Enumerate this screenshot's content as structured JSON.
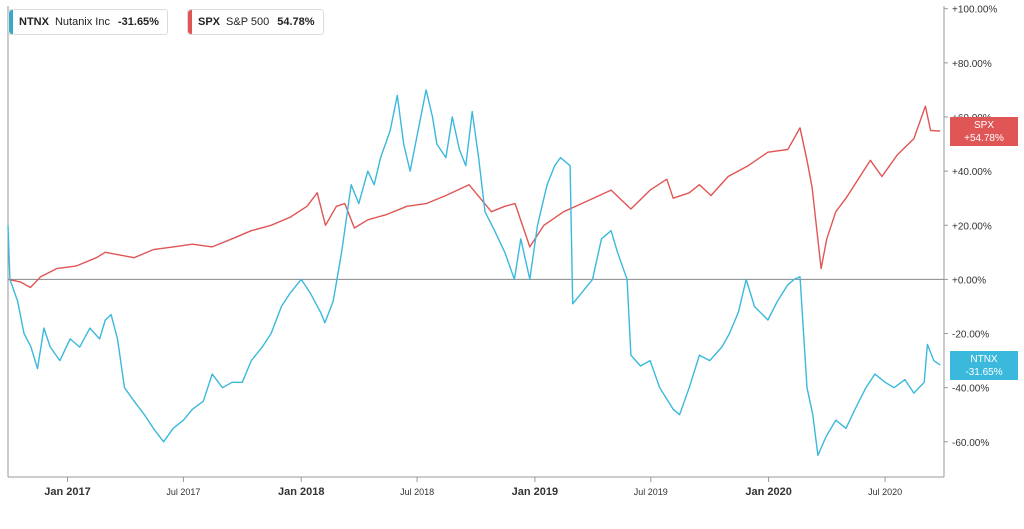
{
  "legend": [
    {
      "symbol": "NTNX",
      "name": "Nutanix Inc",
      "change": "-31.65%",
      "color": "#3aa8c9"
    },
    {
      "symbol": "SPX",
      "name": "S&P 500",
      "change": "54.78%",
      "color": "#e05555"
    }
  ],
  "tags": [
    {
      "symbol": "SPX",
      "value": "+54.78%",
      "color": "#e05555"
    },
    {
      "symbol": "NTNX",
      "value": "-31.65%",
      "color": "#3ab9dc"
    }
  ],
  "chart_data": {
    "type": "line",
    "y_unit": "% change",
    "ylim": [
      -73,
      101
    ],
    "xlim": [
      "2016-09-30",
      "2020-10-01"
    ],
    "y_ticks": [
      {
        "value": 100,
        "label": "+100.00%"
      },
      {
        "value": 80,
        "label": "+80.00%"
      },
      {
        "value": 60,
        "label": "+60.00%"
      },
      {
        "value": 40,
        "label": "+40.00%"
      },
      {
        "value": 20,
        "label": "+20.00%"
      },
      {
        "value": 0,
        "label": "+0.00%"
      },
      {
        "value": -20,
        "label": "-20.00%"
      },
      {
        "value": -40,
        "label": "-40.00%"
      },
      {
        "value": -60,
        "label": "-60.00%"
      }
    ],
    "x_ticks": [
      {
        "date": "2017-01-01",
        "label": "Jan 2017",
        "major": true
      },
      {
        "date": "2017-07-01",
        "label": "Jul 2017",
        "major": false
      },
      {
        "date": "2018-01-01",
        "label": "Jan 2018",
        "major": true
      },
      {
        "date": "2018-07-01",
        "label": "Jul 2018",
        "major": false
      },
      {
        "date": "2019-01-01",
        "label": "Jan 2019",
        "major": true
      },
      {
        "date": "2019-07-01",
        "label": "Jul 2019",
        "major": false
      },
      {
        "date": "2020-01-01",
        "label": "Jan 2020",
        "major": true
      },
      {
        "date": "2020-07-01",
        "label": "Jul 2020",
        "major": false
      }
    ],
    "series": [
      {
        "name": "SPX",
        "color": "#e05555",
        "points": [
          [
            "2016-10-01",
            0
          ],
          [
            "2016-10-20",
            -1
          ],
          [
            "2016-11-04",
            -3
          ],
          [
            "2016-11-20",
            1
          ],
          [
            "2016-12-15",
            4
          ],
          [
            "2017-01-15",
            5
          ],
          [
            "2017-02-15",
            8
          ],
          [
            "2017-03-01",
            10
          ],
          [
            "2017-04-15",
            8
          ],
          [
            "2017-05-15",
            11
          ],
          [
            "2017-06-15",
            12
          ],
          [
            "2017-07-15",
            13
          ],
          [
            "2017-08-15",
            12
          ],
          [
            "2017-09-15",
            15
          ],
          [
            "2017-10-15",
            18
          ],
          [
            "2017-11-15",
            20
          ],
          [
            "2017-12-15",
            23
          ],
          [
            "2018-01-10",
            27
          ],
          [
            "2018-01-26",
            32
          ],
          [
            "2018-02-08",
            20
          ],
          [
            "2018-02-25",
            27
          ],
          [
            "2018-03-10",
            28
          ],
          [
            "2018-03-25",
            19
          ],
          [
            "2018-04-15",
            22
          ],
          [
            "2018-05-15",
            24
          ],
          [
            "2018-06-15",
            27
          ],
          [
            "2018-07-15",
            28
          ],
          [
            "2018-08-15",
            31
          ],
          [
            "2018-09-20",
            35
          ],
          [
            "2018-10-25",
            25
          ],
          [
            "2018-11-15",
            27
          ],
          [
            "2018-12-01",
            28
          ],
          [
            "2018-12-24",
            12
          ],
          [
            "2019-01-15",
            20
          ],
          [
            "2019-02-15",
            25
          ],
          [
            "2019-03-15",
            28
          ],
          [
            "2019-04-30",
            33
          ],
          [
            "2019-05-31",
            26
          ],
          [
            "2019-06-30",
            33
          ],
          [
            "2019-07-26",
            37
          ],
          [
            "2019-08-05",
            30
          ],
          [
            "2019-08-30",
            32
          ],
          [
            "2019-09-15",
            35
          ],
          [
            "2019-10-03",
            31
          ],
          [
            "2019-10-30",
            38
          ],
          [
            "2019-11-30",
            42
          ],
          [
            "2019-12-31",
            47
          ],
          [
            "2020-01-31",
            48
          ],
          [
            "2020-02-19",
            56
          ],
          [
            "2020-03-01",
            44
          ],
          [
            "2020-03-09",
            34
          ],
          [
            "2020-03-23",
            4
          ],
          [
            "2020-04-01",
            15
          ],
          [
            "2020-04-15",
            25
          ],
          [
            "2020-05-01",
            30
          ],
          [
            "2020-06-08",
            44
          ],
          [
            "2020-06-26",
            38
          ],
          [
            "2020-07-20",
            46
          ],
          [
            "2020-08-15",
            52
          ],
          [
            "2020-09-02",
            64
          ],
          [
            "2020-09-10",
            55
          ],
          [
            "2020-09-25",
            54.78
          ]
        ]
      },
      {
        "name": "NTNX",
        "color": "#3ab9dc",
        "points": [
          [
            "2016-09-30",
            20
          ],
          [
            "2016-10-03",
            0
          ],
          [
            "2016-10-15",
            -8
          ],
          [
            "2016-10-25",
            -20
          ],
          [
            "2016-11-05",
            -25
          ],
          [
            "2016-11-15",
            -33
          ],
          [
            "2016-11-25",
            -18
          ],
          [
            "2016-12-05",
            -25
          ],
          [
            "2016-12-20",
            -30
          ],
          [
            "2017-01-05",
            -22
          ],
          [
            "2017-01-20",
            -25
          ],
          [
            "2017-02-05",
            -18
          ],
          [
            "2017-02-20",
            -22
          ],
          [
            "2017-03-01",
            -15
          ],
          [
            "2017-03-10",
            -13
          ],
          [
            "2017-03-20",
            -22
          ],
          [
            "2017-03-31",
            -40
          ],
          [
            "2017-04-15",
            -45
          ],
          [
            "2017-05-01",
            -50
          ],
          [
            "2017-05-15",
            -55
          ],
          [
            "2017-05-31",
            -60
          ],
          [
            "2017-06-15",
            -55
          ],
          [
            "2017-07-01",
            -52
          ],
          [
            "2017-07-15",
            -48
          ],
          [
            "2017-08-01",
            -45
          ],
          [
            "2017-08-15",
            -35
          ],
          [
            "2017-08-31",
            -40
          ],
          [
            "2017-09-15",
            -38
          ],
          [
            "2017-10-01",
            -38
          ],
          [
            "2017-10-15",
            -30
          ],
          [
            "2017-11-01",
            -25
          ],
          [
            "2017-11-15",
            -20
          ],
          [
            "2017-12-01",
            -10
          ],
          [
            "2017-12-15",
            -5
          ],
          [
            "2018-01-01",
            0
          ],
          [
            "2018-01-15",
            -5
          ],
          [
            "2018-01-31",
            -12
          ],
          [
            "2018-02-07",
            -16
          ],
          [
            "2018-02-20",
            -8
          ],
          [
            "2018-03-05",
            10
          ],
          [
            "2018-03-20",
            35
          ],
          [
            "2018-04-01",
            28
          ],
          [
            "2018-04-15",
            40
          ],
          [
            "2018-04-25",
            35
          ],
          [
            "2018-05-05",
            45
          ],
          [
            "2018-05-20",
            55
          ],
          [
            "2018-05-31",
            68
          ],
          [
            "2018-06-10",
            50
          ],
          [
            "2018-06-20",
            40
          ],
          [
            "2018-07-05",
            58
          ],
          [
            "2018-07-15",
            70
          ],
          [
            "2018-07-25",
            60
          ],
          [
            "2018-08-01",
            50
          ],
          [
            "2018-08-15",
            45
          ],
          [
            "2018-08-25",
            60
          ],
          [
            "2018-09-05",
            48
          ],
          [
            "2018-09-15",
            42
          ],
          [
            "2018-09-25",
            62
          ],
          [
            "2018-10-05",
            45
          ],
          [
            "2018-10-15",
            25
          ],
          [
            "2018-10-30",
            18
          ],
          [
            "2018-11-15",
            10
          ],
          [
            "2018-11-30",
            0
          ],
          [
            "2018-12-10",
            15
          ],
          [
            "2018-12-24",
            0
          ],
          [
            "2019-01-05",
            20
          ],
          [
            "2019-01-20",
            35
          ],
          [
            "2019-02-01",
            42
          ],
          [
            "2019-02-10",
            45
          ],
          [
            "2019-02-25",
            42
          ],
          [
            "2019-03-01",
            -9
          ],
          [
            "2019-03-15",
            -5
          ],
          [
            "2019-04-01",
            0
          ],
          [
            "2019-04-15",
            15
          ],
          [
            "2019-04-30",
            18
          ],
          [
            "2019-05-10",
            10
          ],
          [
            "2019-05-25",
            0
          ],
          [
            "2019-05-31",
            -28
          ],
          [
            "2019-06-15",
            -32
          ],
          [
            "2019-06-30",
            -30
          ],
          [
            "2019-07-15",
            -40
          ],
          [
            "2019-08-05",
            -48
          ],
          [
            "2019-08-15",
            -50
          ],
          [
            "2019-08-30",
            -40
          ],
          [
            "2019-09-15",
            -28
          ],
          [
            "2019-10-01",
            -30
          ],
          [
            "2019-10-20",
            -25
          ],
          [
            "2019-11-01",
            -20
          ],
          [
            "2019-11-15",
            -12
          ],
          [
            "2019-11-27",
            0
          ],
          [
            "2019-12-10",
            -10
          ],
          [
            "2019-12-31",
            -15
          ],
          [
            "2020-01-15",
            -8
          ],
          [
            "2020-01-31",
            -2
          ],
          [
            "2020-02-10",
            0
          ],
          [
            "2020-02-19",
            1
          ],
          [
            "2020-03-01",
            -40
          ],
          [
            "2020-03-10",
            -50
          ],
          [
            "2020-03-18",
            -65
          ],
          [
            "2020-03-31",
            -58
          ],
          [
            "2020-04-15",
            -52
          ],
          [
            "2020-05-01",
            -55
          ],
          [
            "2020-05-15",
            -48
          ],
          [
            "2020-06-01",
            -40
          ],
          [
            "2020-06-15",
            -35
          ],
          [
            "2020-07-01",
            -38
          ],
          [
            "2020-07-15",
            -40
          ],
          [
            "2020-08-01",
            -37
          ],
          [
            "2020-08-15",
            -42
          ],
          [
            "2020-08-31",
            -38
          ],
          [
            "2020-09-05",
            -24
          ],
          [
            "2020-09-15",
            -30
          ],
          [
            "2020-09-25",
            -31.65
          ]
        ]
      }
    ]
  }
}
